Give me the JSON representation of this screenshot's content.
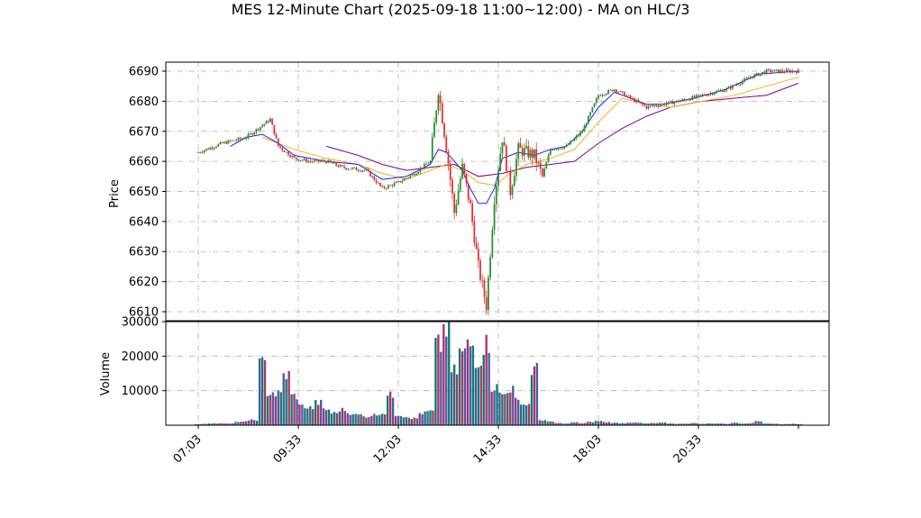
{
  "chart_data": {
    "type": "candlestick",
    "title": "MES 12-Minute Chart (2025-09-18 11:00~12:00) - MA on HLC/3",
    "price_panel": {
      "ylabel": "Price",
      "ylim": [
        6607,
        6693
      ],
      "yticks": [
        6610,
        6620,
        6630,
        6640,
        6650,
        6660,
        6670,
        6680,
        6690
      ],
      "grid": true
    },
    "volume_panel": {
      "ylabel": "Volume",
      "ylim": [
        0,
        30000
      ],
      "yticks": [
        10000,
        20000,
        30000
      ],
      "grid": true
    },
    "x_axis": {
      "ticks": [
        "07:03",
        "09:33",
        "12:03",
        "14:33",
        "18:03",
        "20:33"
      ],
      "tick_index": [
        0,
        12.5,
        25,
        37.5,
        50,
        62.5
      ],
      "n_bars": 76
    },
    "colors": {
      "up": "#2e8b2e",
      "down": "#e03030",
      "vol_up": "#0b7d6a",
      "vol_down": "#b0306a",
      "vol_other": "#4a5ba8",
      "ma_fast": "#1a1aff",
      "ma_mid": "#f0b020",
      "ma_slow": "#800080",
      "grid": "#b0b0b0"
    },
    "price_path": [
      [
        0,
        6663
      ],
      [
        3,
        6666
      ],
      [
        6,
        6668
      ],
      [
        8,
        6672
      ],
      [
        9,
        6674
      ],
      [
        10,
        6665
      ],
      [
        12,
        6661
      ],
      [
        14,
        6660
      ],
      [
        16,
        6660
      ],
      [
        18,
        6658
      ],
      [
        21,
        6657
      ],
      [
        23,
        6651
      ],
      [
        25,
        6653
      ],
      [
        27,
        6656
      ],
      [
        29,
        6660
      ],
      [
        30,
        6684
      ],
      [
        31,
        6665
      ],
      [
        32,
        6643
      ],
      [
        33,
        6658
      ],
      [
        34,
        6645
      ],
      [
        35,
        6625
      ],
      [
        36,
        6612
      ],
      [
        37,
        6648
      ],
      [
        38,
        6668
      ],
      [
        39,
        6650
      ],
      [
        40,
        6664
      ],
      [
        42,
        6662
      ],
      [
        43,
        6655
      ],
      [
        44,
        6664
      ],
      [
        46,
        6665
      ],
      [
        48,
        6670
      ],
      [
        50,
        6682
      ],
      [
        52,
        6684
      ],
      [
        54,
        6681
      ],
      [
        56,
        6678
      ],
      [
        58,
        6679
      ],
      [
        60,
        6680
      ],
      [
        63,
        6682
      ],
      [
        66,
        6684
      ],
      [
        69,
        6688
      ],
      [
        71,
        6690
      ],
      [
        75,
        6690
      ]
    ],
    "ma_fast": [
      [
        4,
        6665
      ],
      [
        6,
        6668
      ],
      [
        8,
        6669
      ],
      [
        10,
        6666
      ],
      [
        12,
        6662
      ],
      [
        16,
        6660
      ],
      [
        20,
        6659
      ],
      [
        23,
        6654
      ],
      [
        26,
        6655
      ],
      [
        29,
        6659
      ],
      [
        30,
        6664
      ],
      [
        31,
        6663
      ],
      [
        32,
        6660
      ],
      [
        33,
        6657
      ],
      [
        34,
        6651
      ],
      [
        35,
        6646
      ],
      [
        36,
        6646
      ],
      [
        37,
        6651
      ],
      [
        38,
        6661
      ],
      [
        40,
        6663
      ],
      [
        42,
        6662
      ],
      [
        44,
        6664
      ],
      [
        46,
        6665
      ],
      [
        48,
        6670
      ],
      [
        50,
        6678
      ],
      [
        52,
        6683
      ],
      [
        54,
        6681
      ],
      [
        56,
        6679
      ],
      [
        58,
        6679
      ],
      [
        62,
        6681
      ],
      [
        66,
        6684
      ],
      [
        70,
        6689
      ],
      [
        75,
        6690
      ]
    ],
    "ma_mid": [
      [
        8,
        6668
      ],
      [
        12,
        6664
      ],
      [
        16,
        6661
      ],
      [
        20,
        6659
      ],
      [
        23,
        6656
      ],
      [
        26,
        6654
      ],
      [
        29,
        6657
      ],
      [
        31,
        6659
      ],
      [
        33,
        6657
      ],
      [
        35,
        6653
      ],
      [
        37,
        6652
      ],
      [
        39,
        6656
      ],
      [
        41,
        6659
      ],
      [
        44,
        6661
      ],
      [
        47,
        6664
      ],
      [
        50,
        6673
      ],
      [
        53,
        6681
      ],
      [
        56,
        6679
      ],
      [
        59,
        6678
      ],
      [
        63,
        6680
      ],
      [
        67,
        6682
      ],
      [
        71,
        6685
      ],
      [
        75,
        6688
      ]
    ],
    "ma_slow": [
      [
        16,
        6665
      ],
      [
        20,
        6662
      ],
      [
        23,
        6659
      ],
      [
        26,
        6657
      ],
      [
        29,
        6658
      ],
      [
        32,
        6659
      ],
      [
        35,
        6655
      ],
      [
        38,
        6656
      ],
      [
        41,
        6658
      ],
      [
        44,
        6659
      ],
      [
        47,
        6660
      ],
      [
        50,
        6666
      ],
      [
        53,
        6671
      ],
      [
        56,
        6675
      ],
      [
        59,
        6678
      ],
      [
        63,
        6680
      ],
      [
        67,
        6681
      ],
      [
        71,
        6682
      ],
      [
        75,
        6686
      ]
    ],
    "volume": [
      300,
      450,
      500,
      600,
      500,
      900,
      1200,
      1500,
      17500,
      9500,
      9000,
      14500,
      8500,
      5500,
      5000,
      6500,
      4500,
      3500,
      4500,
      3500,
      3000,
      2500,
      3000,
      3500,
      8500,
      3000,
      2500,
      2000,
      3500,
      4000,
      23000,
      28000,
      15500,
      21000,
      23000,
      19000,
      23500,
      11000,
      9000,
      10500,
      7000,
      6000,
      16000,
      1500,
      1000,
      600,
      500,
      800,
      600,
      900,
      1200,
      900,
      700,
      600,
      800,
      700,
      500,
      600,
      700,
      500,
      400,
      500,
      600,
      400,
      500,
      500,
      400,
      700,
      500,
      600,
      1200,
      500,
      400,
      300,
      400,
      300
    ]
  }
}
